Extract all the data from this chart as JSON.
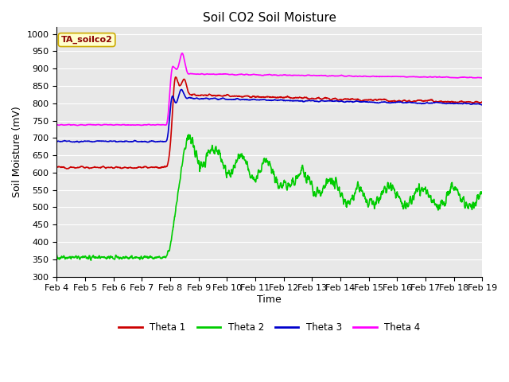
{
  "title": "Soil CO2 Soil Moisture",
  "xlabel": "Time",
  "ylabel": "Soil Moisture (mV)",
  "annotation_label": "TA_soilco2",
  "ylim": [
    300,
    1020
  ],
  "yticks": [
    300,
    350,
    400,
    450,
    500,
    550,
    600,
    650,
    700,
    750,
    800,
    850,
    900,
    950,
    1000
  ],
  "x_tick_labels": [
    "Feb 4",
    "Feb 5",
    "Feb 6",
    "Feb 7",
    "Feb 8",
    "Feb 9",
    "Feb 10",
    "Feb 11",
    "Feb 12",
    "Feb 13",
    "Feb 14",
    "Feb 15",
    "Feb 16",
    "Feb 17",
    "Feb 18",
    "Feb 19"
  ],
  "legend_labels": [
    "Theta 1",
    "Theta 2",
    "Theta 3",
    "Theta 4"
  ],
  "colors": {
    "theta1": "#cc0000",
    "theta2": "#00cc00",
    "theta3": "#0000cc",
    "theta4": "#ff00ff"
  },
  "plot_bg_color": "#e8e8e8",
  "fig_bg_color": "#ffffff",
  "title_fontsize": 11,
  "axis_label_fontsize": 9,
  "tick_fontsize": 8,
  "line_width": 1.2,
  "grid_color": "#ffffff",
  "annotation_fg": "#8b0000",
  "annotation_bg": "#ffffcc",
  "annotation_edge": "#ccaa00"
}
